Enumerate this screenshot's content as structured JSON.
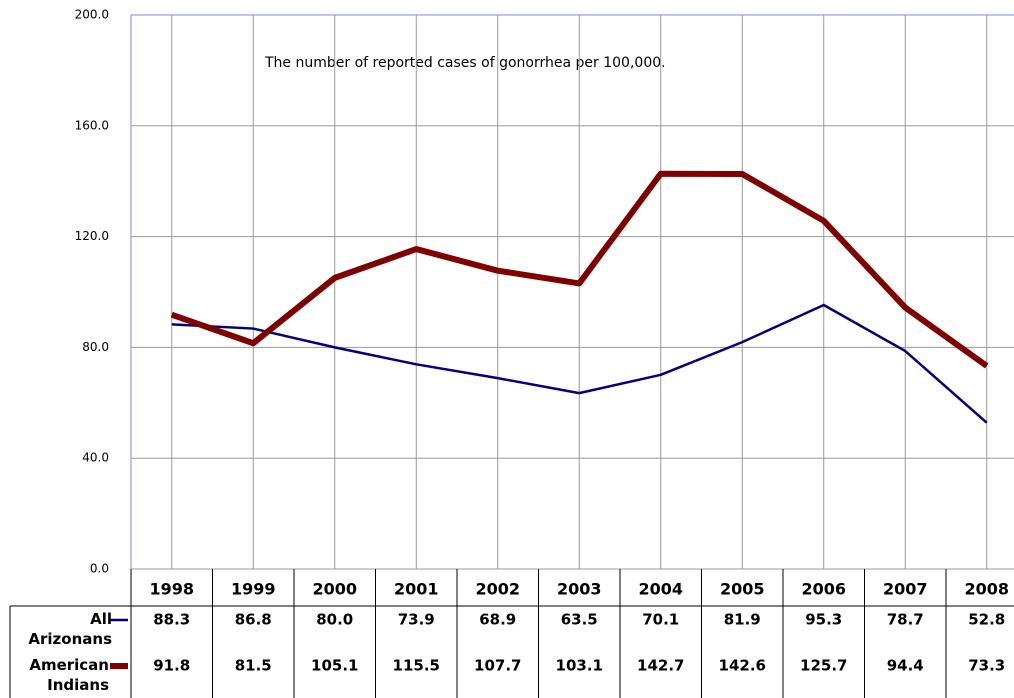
{
  "chart_data": {
    "type": "line",
    "title": "The number of reported cases of gonorrhea per 100,000.",
    "categories": [
      "1998",
      "1999",
      "2000",
      "2001",
      "2002",
      "2003",
      "2004",
      "2005",
      "2006",
      "2007",
      "2008"
    ],
    "series": [
      {
        "name": "All Arizonans",
        "color": "#000080",
        "values": [
          88.3,
          86.8,
          80.0,
          73.9,
          68.9,
          63.5,
          70.1,
          81.9,
          95.3,
          78.7,
          52.8
        ],
        "value_labels": [
          "88.3",
          "86.8",
          "80.0",
          "73.9",
          "68.9",
          "63.5",
          "70.1",
          "81.9",
          "95.3",
          "78.7",
          "52.8"
        ]
      },
      {
        "name": "American Indians",
        "color": "#800000",
        "values": [
          91.8,
          81.5,
          105.1,
          115.5,
          107.7,
          103.1,
          142.7,
          142.6,
          125.7,
          94.4,
          73.3
        ],
        "value_labels": [
          "91.8",
          "81.5",
          "105.1",
          "115.5",
          "107.7",
          "103.1",
          "142.7",
          "142.6",
          "125.7",
          "94.4",
          "73.3"
        ]
      }
    ],
    "ylim": [
      0,
      200
    ],
    "yticks": [
      {
        "value": 0,
        "label": "0.0"
      },
      {
        "value": 40,
        "label": "40.0"
      },
      {
        "value": 80,
        "label": "80.0"
      },
      {
        "value": 120,
        "label": "120.0"
      },
      {
        "value": 160,
        "label": "160.0"
      },
      {
        "value": 200,
        "label": "200.0"
      }
    ],
    "grid": true
  }
}
